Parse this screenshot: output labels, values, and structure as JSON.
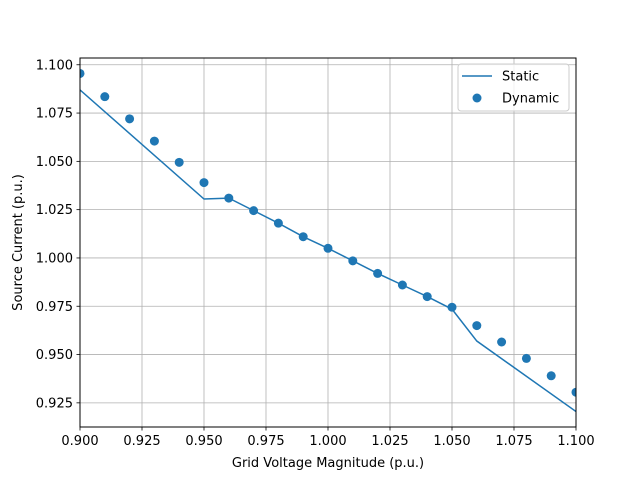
{
  "chart_data": {
    "type": "line",
    "title": "",
    "xlabel": "Grid Voltage Magnitude (p.u.)",
    "ylabel": "Source Current (p.u.)",
    "xlim": [
      0.9,
      1.1
    ],
    "ylim": [
      0.9125,
      1.1035
    ],
    "xticks": [
      0.9,
      0.925,
      0.95,
      0.975,
      1.0,
      1.025,
      1.05,
      1.075,
      1.1
    ],
    "xtick_labels": [
      "0.900",
      "0.925",
      "0.950",
      "0.975",
      "1.000",
      "1.025",
      "1.050",
      "1.075",
      "1.100"
    ],
    "yticks": [
      0.925,
      0.95,
      0.975,
      1.0,
      1.025,
      1.05,
      1.075,
      1.1
    ],
    "ytick_labels": [
      "0.925",
      "0.950",
      "0.975",
      "1.000",
      "1.025",
      "1.050",
      "1.075",
      "1.100"
    ],
    "grid": true,
    "legend_position": "top-right",
    "color": "#1f77b4",
    "series": [
      {
        "name": "Static",
        "kind": "line",
        "x": [
          0.9,
          0.95,
          0.96,
          0.97,
          0.98,
          0.99,
          1.0,
          1.01,
          1.02,
          1.03,
          1.04,
          1.05,
          1.06,
          1.1
        ],
        "y": [
          1.087,
          1.0305,
          1.031,
          1.0245,
          1.018,
          1.011,
          1.005,
          0.9985,
          0.992,
          0.986,
          0.98,
          0.9735,
          0.957,
          0.9205
        ]
      },
      {
        "name": "Dynamic",
        "kind": "scatter",
        "x": [
          0.9,
          0.91,
          0.92,
          0.93,
          0.94,
          0.95,
          0.96,
          0.97,
          0.98,
          0.99,
          1.0,
          1.01,
          1.02,
          1.03,
          1.04,
          1.05,
          1.06,
          1.07,
          1.08,
          1.09,
          1.1
        ],
        "y": [
          1.0955,
          1.0835,
          1.072,
          1.0605,
          1.0495,
          1.039,
          1.031,
          1.0245,
          1.018,
          1.011,
          1.005,
          0.9985,
          0.992,
          0.986,
          0.98,
          0.9745,
          0.965,
          0.9565,
          0.948,
          0.939,
          0.9305
        ]
      }
    ]
  }
}
